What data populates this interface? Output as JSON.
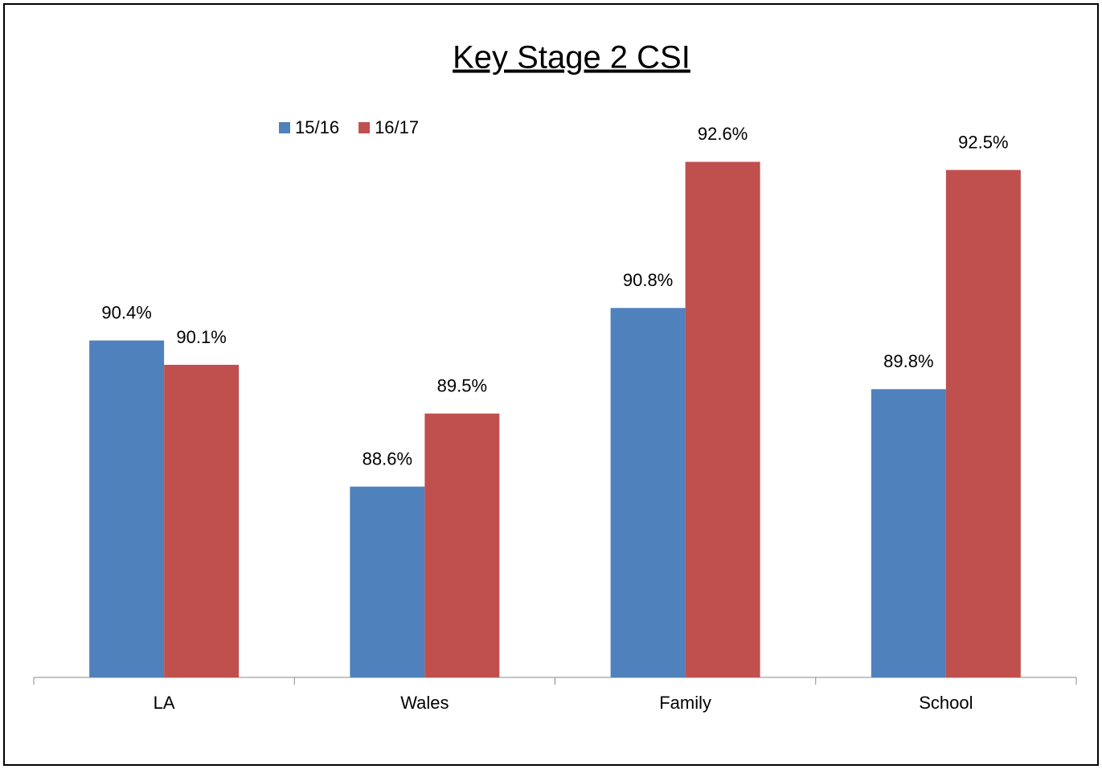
{
  "chart_data": {
    "type": "bar",
    "title": "Key Stage 2 CSI",
    "categories": [
      "LA",
      "Wales",
      "Family",
      "School"
    ],
    "series": [
      {
        "name": "15/16",
        "color": "#4f81bd",
        "values": [
          90.4,
          88.6,
          90.8,
          89.8
        ],
        "value_labels": [
          "90.4%",
          "88.6%",
          "90.8%",
          "89.8%"
        ]
      },
      {
        "name": "16/17",
        "color": "#c0504d",
        "values": [
          90.1,
          89.5,
          92.6,
          92.5
        ],
        "value_labels": [
          "90.1%",
          "89.5%",
          "92.6%",
          "92.5%"
        ]
      }
    ],
    "ylim": [
      86.25,
      93
    ],
    "legend": "top-left"
  }
}
